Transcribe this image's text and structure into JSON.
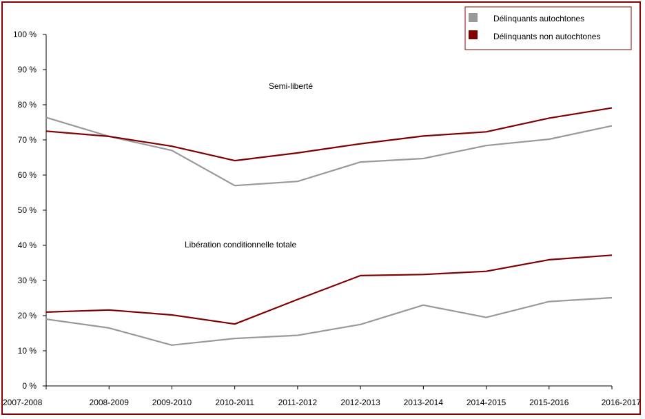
{
  "chart_data": {
    "type": "line",
    "categories": [
      "2007-2008",
      "2008-2009",
      "2009-2010",
      "2010-2011",
      "2011-2012",
      "2012-2013",
      "2013-2014",
      "2014-2015",
      "2015-2016",
      "2016-2017"
    ],
    "ylim": [
      0,
      100
    ],
    "yticks": [
      "0 %",
      "10 %",
      "20 %",
      "30 %",
      "40 %",
      "50 %",
      "60 %",
      "70 %",
      "80 %",
      "90 %",
      "100 %"
    ],
    "grid": false,
    "legend_position": "top-right",
    "annotations": [
      "Semi-liberté",
      "Libération conditionnelle totale"
    ],
    "series": [
      {
        "name": "Délinquants autochtones",
        "group": "Semi-liberté",
        "color": "#999999",
        "values": [
          76.4,
          71.0,
          67.0,
          57.0,
          58.2,
          63.7,
          64.7,
          68.4,
          70.2,
          74.0
        ]
      },
      {
        "name": "Délinquants non autochtones",
        "group": "Semi-liberté",
        "color": "#800000",
        "values": [
          72.5,
          71.0,
          68.2,
          64.1,
          66.3,
          68.9,
          71.1,
          72.3,
          76.2,
          79.1
        ]
      },
      {
        "name": "Délinquants autochtones",
        "group": "Libération conditionnelle totale",
        "color": "#999999",
        "values": [
          19.0,
          16.5,
          11.6,
          13.5,
          14.4,
          17.5,
          23.0,
          19.5,
          24.0,
          25.1
        ]
      },
      {
        "name": "Délinquants non autochtones",
        "group": "Libération conditionnelle totale",
        "color": "#800000",
        "values": [
          21.0,
          21.6,
          20.2,
          17.6,
          24.6,
          31.4,
          31.7,
          32.6,
          35.9,
          37.2
        ]
      }
    ],
    "legend": [
      {
        "label": "Délinquants autochtones",
        "color": "#999999"
      },
      {
        "label": "Délinquants non autochtones",
        "color": "#800000"
      }
    ]
  }
}
